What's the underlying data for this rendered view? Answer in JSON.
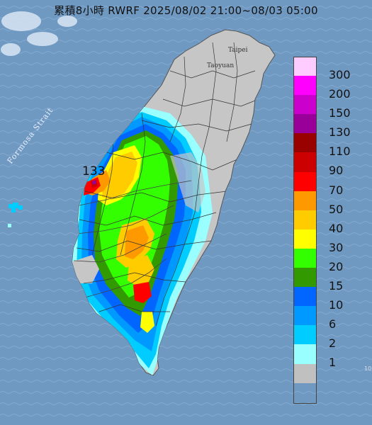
{
  "title": "累積8小時 RWRF 2025/08/02 21:00~08/03 05:00",
  "labels": {
    "strait": "Formosa Strait",
    "taipei": "Taipei",
    "taoyuan": "Taoyuan",
    "max_value": "133",
    "edge_mark": "10"
  },
  "legend": {
    "items": [
      {
        "label": "300",
        "color": "#ffccff"
      },
      {
        "label": "200",
        "color": "#ff00ff"
      },
      {
        "label": "150",
        "color": "#cc00cc"
      },
      {
        "label": "130",
        "color": "#990099"
      },
      {
        "label": "110",
        "color": "#990000"
      },
      {
        "label": "90",
        "color": "#cc0000"
      },
      {
        "label": "70",
        "color": "#ff0000"
      },
      {
        "label": "50",
        "color": "#ff9900"
      },
      {
        "label": "40",
        "color": "#ffcc00"
      },
      {
        "label": "30",
        "color": "#ffff00"
      },
      {
        "label": "20",
        "color": "#33ff00"
      },
      {
        "label": "15",
        "color": "#339900"
      },
      {
        "label": "10",
        "color": "#0066ff"
      },
      {
        "label": "6",
        "color": "#0099ff"
      },
      {
        "label": "2",
        "color": "#00ccff"
      },
      {
        "label": "1",
        "color": "#99ffff"
      },
      {
        "label": "",
        "color": "#c0c0c0"
      }
    ]
  },
  "colors": {
    "sea": "#6f95bf",
    "land": "#c6c6c6"
  }
}
